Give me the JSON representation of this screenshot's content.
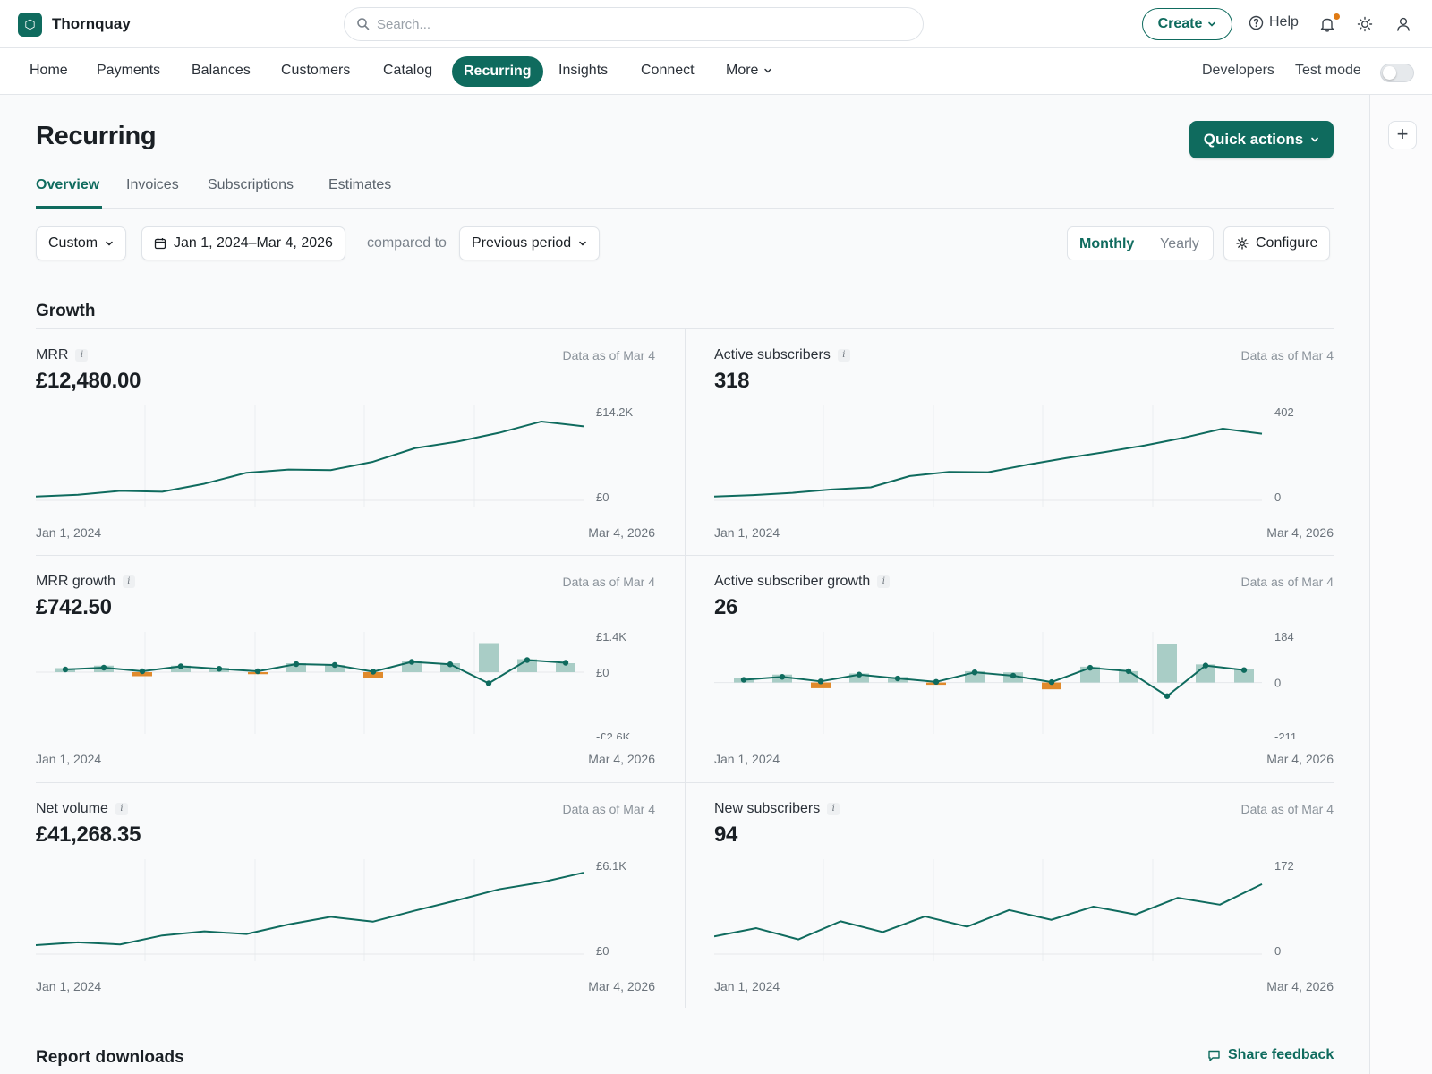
{
  "topbar": {
    "brand": "Thornquay",
    "search_placeholder": "Search...",
    "create_label": "Create",
    "help_label": "Help"
  },
  "nav": {
    "items": [
      "Home",
      "Payments",
      "Balances",
      "Customers",
      "Catalog",
      "Recurring",
      "Insights",
      "Connect",
      "More"
    ],
    "active": "Recurring",
    "developers": "Developers",
    "test_mode": "Test mode",
    "test_mode_on": false
  },
  "page": {
    "title": "Recurring",
    "quick_actions": "Quick actions",
    "tabs": [
      "Overview",
      "Invoices",
      "Subscriptions",
      "Estimates"
    ],
    "active_tab": "Overview"
  },
  "filters": {
    "range_type": "Custom",
    "date_range": "Jan 1, 2024–Mar 4, 2026",
    "compared_to": "compared to",
    "comparison": "Previous period",
    "interval_options": [
      "Monthly",
      "Yearly"
    ],
    "interval_selected": "Monthly",
    "configure": "Configure"
  },
  "growth": {
    "title": "Growth",
    "cards": [
      {
        "label": "MRR",
        "asof": "Data as of Mar 4",
        "value": "£12,480.00",
        "x_start": "Jan 1, 2024",
        "x_end": "Mar 4, 2026",
        "y_top": "£14.2K",
        "y_bottom": "£0",
        "chart": {
          "type": "line",
          "ylim": [
            0,
            14200
          ],
          "values": [
            650,
            950,
            1600,
            1450,
            2800,
            4650,
            5200,
            5100,
            6500,
            8800,
            9900,
            11400,
            13300,
            12480
          ]
        }
      },
      {
        "label": "Active subscribers",
        "asof": "Data as of Mar 4",
        "value": "318",
        "x_start": "Jan 1, 2024",
        "x_end": "Mar 4, 2026",
        "y_top": "402",
        "y_bottom": "0",
        "chart": {
          "type": "line",
          "ylim": [
            0,
            402
          ],
          "values": [
            18,
            25,
            36,
            52,
            62,
            116,
            136,
            134,
            170,
            202,
            231,
            262,
            299,
            342,
            318
          ]
        }
      },
      {
        "label": "MRR growth",
        "asof": "Data as of Mar 4",
        "value": "£742.50",
        "x_start": "Jan 1, 2024",
        "x_end": "Mar 4, 2026",
        "y_top": "£1.4K",
        "y_mid": "£0",
        "y_bottom": "-£2.6K",
        "chart": {
          "type": "bar-line",
          "ylim": [
            -2600,
            1400
          ],
          "bars": [
            180,
            290,
            -180,
            290,
            200,
            -90,
            400,
            320,
            -260,
            480,
            400,
            1300,
            580,
            400
          ],
          "line": [
            120,
            200,
            40,
            260,
            150,
            40,
            360,
            320,
            20,
            460,
            350,
            -500,
            540,
            420
          ]
        }
      },
      {
        "label": "Active subscriber growth",
        "asof": "Data as of Mar 4",
        "value": "26",
        "x_start": "Jan 1, 2024",
        "x_end": "Mar 4, 2026",
        "y_top": "184",
        "y_mid": "0",
        "y_bottom": "-211",
        "chart": {
          "type": "bar-line",
          "ylim": [
            -211,
            184
          ],
          "bars": [
            20,
            35,
            -25,
            40,
            25,
            -10,
            50,
            45,
            -30,
            70,
            50,
            170,
            80,
            60
          ],
          "line": [
            12,
            25,
            5,
            35,
            18,
            3,
            45,
            30,
            2,
            65,
            50,
            -60,
            75,
            55
          ]
        }
      },
      {
        "label": "Net volume",
        "asof": "Data as of Mar 4",
        "value": "£41,268.35",
        "x_start": "Jan 1, 2024",
        "x_end": "Mar 4, 2026",
        "y_top": "£6.1K",
        "y_bottom": "£0",
        "chart": {
          "type": "line",
          "ylim": [
            0,
            6100
          ],
          "values": [
            650,
            850,
            700,
            1350,
            1650,
            1450,
            2150,
            2700,
            2350,
            3150,
            3900,
            4700,
            5200,
            5900
          ]
        }
      },
      {
        "label": "New subscribers",
        "asof": "Data as of Mar 4",
        "value": "94",
        "x_start": "Jan 1, 2024",
        "x_end": "Mar 4, 2026",
        "y_top": "172",
        "y_bottom": "0",
        "chart": {
          "type": "line",
          "ylim": [
            0,
            172
          ],
          "values": [
            36,
            53,
            30,
            67,
            45,
            77,
            56,
            90,
            70,
            97,
            81,
            115,
            101,
            143
          ]
        }
      }
    ]
  },
  "reports": {
    "title": "Report downloads",
    "feedback": "Share feedback"
  },
  "colors": {
    "brand": "#0f6b5e",
    "positive_bar": "#a9cdc6",
    "negative_bar": "#e08a2c",
    "notification": "#e07b14"
  }
}
